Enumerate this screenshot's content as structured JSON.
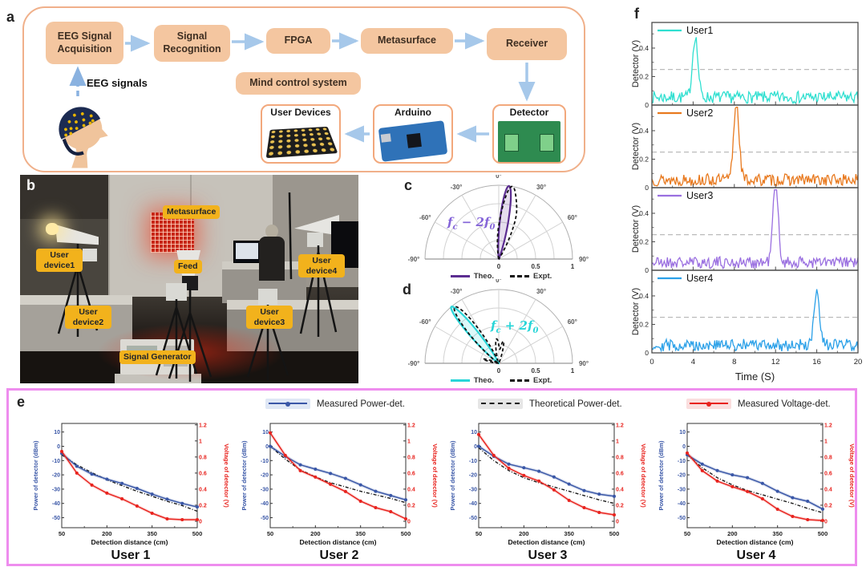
{
  "panels": {
    "a_label": "a",
    "b_label": "b",
    "c_label": "c",
    "d_label": "d",
    "e_label": "e",
    "f_label": "f"
  },
  "colors": {
    "flow_box": "#f4c6a0",
    "panel_a_border": "#f0b08a",
    "arrow": "#a6c8ea",
    "dashed_arrow": "#8ab2e0",
    "photo_label_bg": "#f2b21c",
    "panel_e_border": "#ee8dee"
  },
  "flow": {
    "eeg_acquisition": "EEG Signal Acquisition",
    "signal_recognition": "Signal Recognition",
    "fpga": "FPGA",
    "metasurface": "Metasurface",
    "receiver": "Receiver",
    "mind_control": "Mind control system",
    "user_devices": "User Devices",
    "arduino": "Arduino",
    "detector": "Detector",
    "eeg_signals": "EEG signals"
  },
  "photo": {
    "metasurface": "Metasurface",
    "feed": "Feed",
    "device1": "User device1",
    "device2": "User device2",
    "device3": "User device3",
    "device4": "User device4",
    "generator": "Signal Generator"
  },
  "chart_data": [
    {
      "type": "polar",
      "panel": "c",
      "annotation_parts": [
        {
          "t": "f",
          "sub": "c"
        },
        {
          "t": " − 2"
        },
        {
          "t": "f",
          "sub": "0"
        }
      ],
      "annotation_color": "#8565d8",
      "angle_values": [
        -90,
        -60,
        -30,
        0,
        30,
        60,
        90
      ],
      "angle_labels": [
        "-90°",
        "-60°",
        "-30°",
        "0°",
        "30°",
        "60°",
        "90°"
      ],
      "r_labels": [
        "0",
        "0.5",
        "1"
      ],
      "series": [
        {
          "name": "Theo.",
          "style": "solid",
          "color": "#5c2d91",
          "beam_angle": 8,
          "beam_width": 5.5,
          "peak": 1.0,
          "sidelobes": []
        },
        {
          "name": "Expt.",
          "style": "dashed",
          "color": "#111111",
          "beam_angle": 10,
          "beam_width": 6.5,
          "peak": 0.97,
          "sidelobes": [
            {
              "angle": 22,
              "width": 5,
              "peak": 0.45
            },
            {
              "angle": -2,
              "width": 4,
              "peak": 0.18
            }
          ]
        }
      ],
      "legend": [
        {
          "label": "Theo.",
          "color": "#5c2d91",
          "style": "solid"
        },
        {
          "label": "Expt.",
          "color": "#111111",
          "style": "dashed"
        }
      ]
    },
    {
      "type": "polar",
      "panel": "d",
      "annotation_parts": [
        {
          "t": "f",
          "sub": "c"
        },
        {
          "t": " + 2"
        },
        {
          "t": "f",
          "sub": "0"
        }
      ],
      "annotation_color": "#28d5d8",
      "angle_values": [
        -90,
        -60,
        -30,
        0,
        30,
        60,
        90
      ],
      "angle_labels": [
        "-90°",
        "-60°",
        "-30°",
        "0°",
        "30°",
        "60°",
        "90°"
      ],
      "r_labels": [
        "0",
        "0.5",
        "1"
      ],
      "series": [
        {
          "name": "Theo.",
          "style": "solid",
          "color": "#28d5d8",
          "beam_angle": -40,
          "beam_width": 5.5,
          "peak": 1.0,
          "sidelobes": []
        },
        {
          "name": "Expt.",
          "style": "dashed",
          "color": "#111111",
          "beam_angle": -38,
          "beam_width": 7,
          "peak": 0.97,
          "sidelobes": [
            {
              "angle": -5,
              "width": 6,
              "peak": 0.33
            },
            {
              "angle": 12,
              "width": 5,
              "peak": 0.3
            },
            {
              "angle": -75,
              "width": 4,
              "peak": 0.22
            }
          ]
        }
      ],
      "legend": [
        {
          "label": "Theo.",
          "color": "#28d5d8",
          "style": "solid"
        },
        {
          "label": "Expt.",
          "color": "#111111",
          "style": "dashed"
        }
      ]
    },
    {
      "type": "line",
      "panel": "e",
      "xlabel": "Detection distance (cm)",
      "ylabel_left": "Power of detector (dBm)",
      "ylabel_right": "Voltage of detector (V)",
      "x": [
        50,
        100,
        150,
        200,
        250,
        300,
        350,
        400,
        450,
        500
      ],
      "xticks": [
        50,
        200,
        350,
        500
      ],
      "yticks_left": [
        10,
        0,
        -10,
        -20,
        -30,
        -40,
        -50
      ],
      "ylim_left": [
        -57,
        16
      ],
      "yticks_right": [
        0,
        0.2,
        0.4,
        0.6,
        0.8,
        1,
        1.2
      ],
      "legend": [
        {
          "label": "Measured Power-det.",
          "color": "#3a57a7",
          "bg": "#dfe7f5",
          "style": "solid-dot"
        },
        {
          "label": "Theoretical Power-det.",
          "color": "#1a1a1a",
          "bg": "#e6e6e6",
          "style": "dashed"
        },
        {
          "label": "Measured Voltage-det.",
          "color": "#e8231e",
          "bg": "#fadede",
          "style": "solid-dot"
        }
      ],
      "users": [
        {
          "title": "User 1",
          "measured_power": [
            -5,
            -14,
            -19.5,
            -23,
            -26,
            -29.5,
            -33.5,
            -37,
            -40,
            -42.5
          ],
          "theoretical_power": [
            -6,
            -13,
            -18.5,
            -23.5,
            -27.5,
            -31.5,
            -35,
            -38.5,
            -41.5,
            -45.5
          ],
          "measured_voltage": [
            0.87,
            0.6,
            0.45,
            0.35,
            0.28,
            0.19,
            0.1,
            0.03,
            0.02,
            0.02
          ]
        },
        {
          "title": "User 2",
          "measured_power": [
            0,
            -7,
            -13,
            -16,
            -19,
            -22.5,
            -27,
            -31.5,
            -34.5,
            -37.5
          ],
          "theoretical_power": [
            0,
            -9,
            -16.5,
            -21.5,
            -25.5,
            -28.5,
            -31.5,
            -34,
            -36.5,
            -39.5
          ],
          "measured_voltage": [
            1.1,
            0.82,
            0.63,
            0.55,
            0.46,
            0.37,
            0.25,
            0.17,
            0.12,
            0.03
          ]
        },
        {
          "title": "User 3",
          "measured_power": [
            0,
            -7,
            -12.5,
            -15,
            -17.5,
            -21.5,
            -26.5,
            -31,
            -33.5,
            -35
          ],
          "theoretical_power": [
            -1,
            -10,
            -17,
            -22,
            -25.5,
            -28.5,
            -31.5,
            -34.5,
            -37.5,
            -40
          ],
          "measured_voltage": [
            1.08,
            0.82,
            0.66,
            0.57,
            0.5,
            0.39,
            0.26,
            0.17,
            0.11,
            0.08
          ]
        },
        {
          "title": "User 4",
          "measured_power": [
            -6,
            -12.5,
            -17,
            -20,
            -22,
            -26,
            -31.5,
            -36,
            -38.5,
            -44
          ],
          "theoretical_power": [
            -6,
            -15,
            -22,
            -27,
            -31,
            -34,
            -37,
            -40,
            -43.5,
            -46.5
          ],
          "measured_voltage": [
            0.85,
            0.63,
            0.5,
            0.43,
            0.37,
            0.28,
            0.15,
            0.06,
            0.02,
            0.01
          ]
        }
      ]
    },
    {
      "type": "line",
      "panel": "f",
      "xlabel": "Time (S)",
      "ylabel": "Detector (V)",
      "xlim": [
        0,
        20
      ],
      "xticks": [
        0,
        4,
        8,
        12,
        16,
        20
      ],
      "ylim": [
        0,
        0.58
      ],
      "yticks": [
        0,
        0.2,
        0.4
      ],
      "threshold": 0.25,
      "users": [
        {
          "label": "User1",
          "color": "#2fdfd0",
          "peak_time": 4.2,
          "peak_value": 0.43,
          "seed": 7
        },
        {
          "label": "User2",
          "color": "#e8791e",
          "peak_time": 8.2,
          "peak_value": 0.56,
          "seed": 13
        },
        {
          "label": "User3",
          "color": "#9a6fe0",
          "peak_time": 12.0,
          "peak_value": 0.55,
          "seed": 21
        },
        {
          "label": "User4",
          "color": "#2aa0e8",
          "peak_time": 16.0,
          "peak_value": 0.36,
          "seed": 29
        }
      ],
      "noise": {
        "base": 0.012,
        "amp": 0.085,
        "dt": 0.1
      }
    }
  ]
}
